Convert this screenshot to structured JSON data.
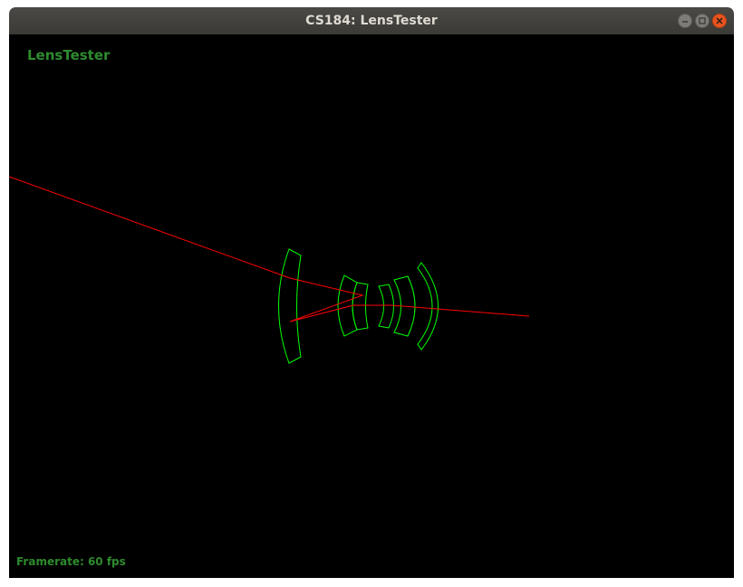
{
  "window": {
    "title": "CS184: LensTester"
  },
  "icons": {
    "minimize": "minimize-icon",
    "maximize": "maximize-icon",
    "close": "close-icon"
  },
  "app": {
    "label": "LensTester",
    "framerate_text": "Framerate: 60 fps"
  },
  "colors": {
    "lens": "#00ff00",
    "ray": "#ff0000",
    "label": "#2e8b2e",
    "background": "#000000",
    "close_button": "#e95420"
  }
}
